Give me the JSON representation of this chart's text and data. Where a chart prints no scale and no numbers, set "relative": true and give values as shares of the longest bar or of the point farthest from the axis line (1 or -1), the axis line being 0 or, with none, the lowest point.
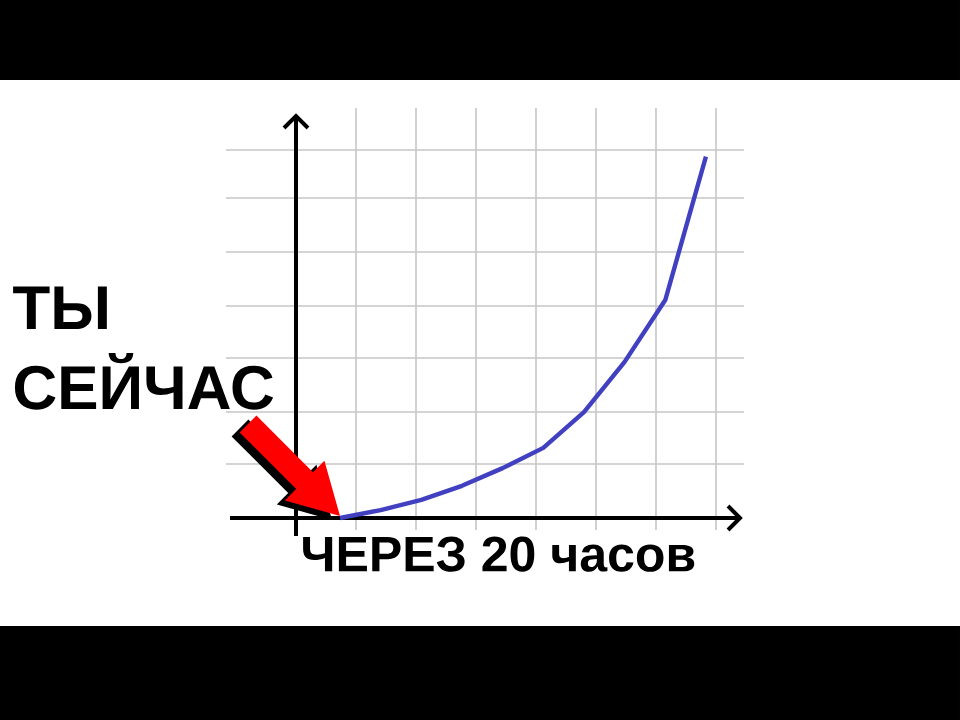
{
  "chart_data": {
    "type": "line",
    "relative": true,
    "xlabel": "ЧЕРЕЗ 20 часов",
    "annotations": [
      "ТЫ СЕЙЧАС"
    ],
    "categories": [
      null,
      null,
      null,
      null,
      null,
      null,
      null,
      null,
      null,
      null
    ],
    "series": [
      {
        "color": "#4040c0",
        "values": [
          0,
          0.022,
          0.05,
          0.089,
          0.138,
          0.194,
          0.293,
          0.432,
          0.603,
          1
        ]
      }
    ],
    "grid": true,
    "marker": "none",
    "line_style": "solid"
  }
}
